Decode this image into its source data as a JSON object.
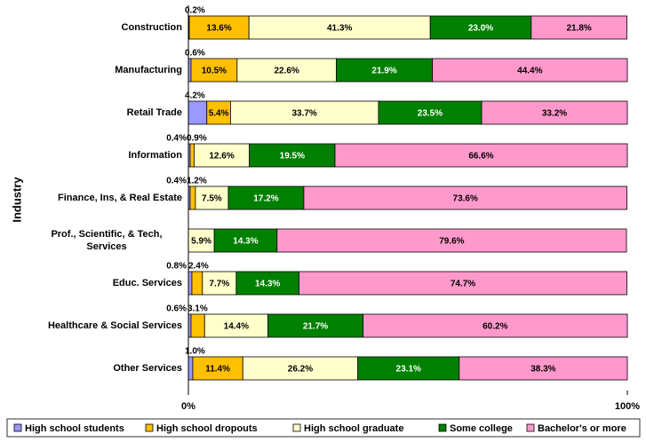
{
  "chart_data": {
    "type": "stacked-bar-horizontal",
    "y_axis_label": "Industry",
    "categories": [
      "Construction",
      "Manufacturing",
      "Retail Trade",
      "Information",
      "Finance, Ins, & Real Estate",
      "Prof., Scientific, & Tech, Services",
      "Educ. Services",
      "Healthcare & Social Services",
      "Other Services"
    ],
    "series": [
      {
        "name": "High school students",
        "color": "#9999ff",
        "values": [
          0.2,
          0.6,
          4.2,
          0.4,
          0.4,
          null,
          0.8,
          0.6,
          1.0
        ],
        "value_labels": [
          "0.2%",
          "0.6%",
          "4.2%",
          "0.4%",
          "0.4%",
          null,
          "0.8%",
          "0.6%",
          "1.0%"
        ]
      },
      {
        "name": "High school dropouts",
        "color": "#ffc000",
        "values": [
          13.6,
          10.5,
          5.4,
          0.9,
          1.2,
          null,
          2.4,
          3.1,
          11.4
        ],
        "value_labels": [
          "13.6%",
          "10.5%",
          "5.4%",
          "0.9%",
          "1.2%",
          null,
          "2.4%",
          "3.1%",
          "11.4%"
        ]
      },
      {
        "name": "High school graduate",
        "color": "#ffffcc",
        "values": [
          41.3,
          22.6,
          33.7,
          12.6,
          7.5,
          5.9,
          7.7,
          14.4,
          26.2
        ],
        "value_labels": [
          "41.3%",
          "22.6%",
          "33.7%",
          "12.6%",
          "7.5%",
          "5.9%",
          "7.7%",
          "14.4%",
          "26.2%"
        ]
      },
      {
        "name": "Some college",
        "color": "#008000",
        "values": [
          23.0,
          21.9,
          23.5,
          19.5,
          17.2,
          14.3,
          14.3,
          21.7,
          23.1
        ],
        "value_labels": [
          "23.0%",
          "21.9%",
          "23.5%",
          "19.5%",
          "17.2%",
          "14.3%",
          "14.3%",
          "21.7%",
          "23.1%"
        ]
      },
      {
        "name": "Bachelor's or more",
        "color": "#ff99cc",
        "values": [
          21.8,
          44.4,
          33.2,
          66.6,
          73.6,
          79.6,
          74.7,
          60.2,
          38.3
        ],
        "value_labels": [
          "21.8%",
          "44.4%",
          "33.2%",
          "66.6%",
          "73.6%",
          "79.6%",
          "74.7%",
          "60.2%",
          "38.3%"
        ]
      }
    ],
    "xlim": [
      0,
      100
    ],
    "xticks": [
      {
        "value": 0,
        "label": "0%"
      },
      {
        "value": 100,
        "label": "100%"
      }
    ],
    "legend": "bottom"
  }
}
